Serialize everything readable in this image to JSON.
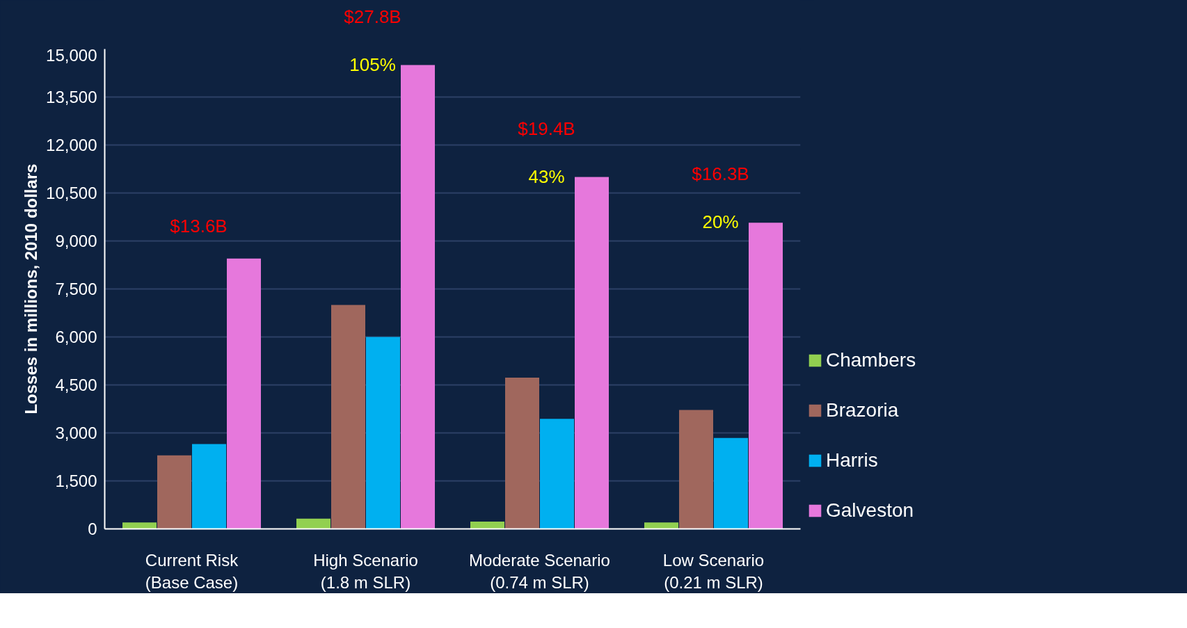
{
  "chart_data": {
    "type": "bar",
    "ylabel": "Losses in millions, 2010 dollars",
    "categories": [
      "Current Risk\n(Base Case)",
      "High Scenario\n(1.8 m SLR)",
      "Moderate Scenario\n(0.74 m SLR)",
      "Low Scenario\n(0.21 m SLR)"
    ],
    "series": [
      {
        "name": "Chambers",
        "color": "#92d050",
        "values": [
          200,
          320,
          230,
          200
        ]
      },
      {
        "name": "Brazoria",
        "color": "#a0675d",
        "values": [
          2300,
          7000,
          4730,
          3720
        ]
      },
      {
        "name": "Harris",
        "color": "#00b0f0",
        "values": [
          2650,
          6000,
          3440,
          2840
        ]
      },
      {
        "name": "Galveston",
        "color": "#e678dc",
        "values": [
          8450,
          14500,
          11000,
          9570
        ]
      }
    ],
    "totals": [
      "$13.6B",
      "$27.8B",
      "$19.4B",
      "$16.3B"
    ],
    "ylim": [
      0,
      15000
    ],
    "yticks": [
      0,
      {
        "value": 1500,
        "label": "1,500"
      },
      {
        "value": 3000,
        "label": "3,000"
      },
      {
        "value": 4500,
        "label": "4,500"
      },
      {
        "value": 6000,
        "label": "6,000"
      },
      {
        "value": 7500,
        "label": "7,500"
      },
      {
        "value": 9000,
        "label": "9,000"
      },
      {
        "value": 10500,
        "label": "10,500"
      },
      {
        "value": 12000,
        "label": "12,000"
      },
      {
        "value": 13500,
        "label": "13,500"
      },
      {
        "value": 15000,
        "label": "15,000"
      }
    ],
    "grid": "y",
    "legend": "right",
    "annotations": [
      "105%",
      "43%",
      "20%"
    ]
  }
}
